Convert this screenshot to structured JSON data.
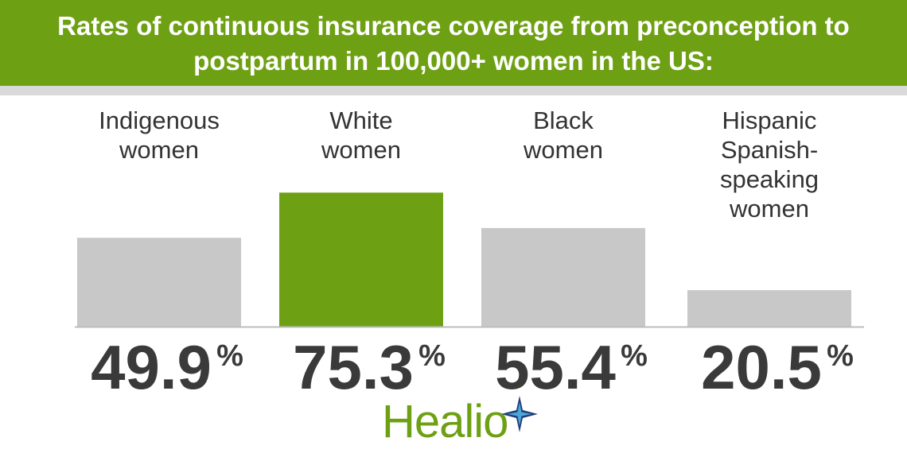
{
  "header": {
    "title_line1": "Rates of continuous insurance coverage from preconception to",
    "title_line2": "postpartum in 100,000+ women in the US:"
  },
  "chart_data": {
    "type": "bar",
    "title": "Rates of continuous insurance coverage from preconception to postpartum in 100,000+ women in the US:",
    "categories": [
      [
        "Indigenous",
        "women"
      ],
      [
        "White",
        "women"
      ],
      [
        "Black",
        "women"
      ],
      [
        "Hispanic",
        "Spanish-",
        "speaking",
        "women"
      ]
    ],
    "values": [
      49.9,
      75.3,
      55.4,
      20.5
    ],
    "value_labels": [
      "49.9",
      "75.3",
      "55.4",
      "20.5"
    ],
    "unit": "%",
    "ylim": [
      0,
      100
    ],
    "grid": false,
    "legend": "none",
    "colors": {
      "default": "#c8c8c8",
      "highlight": "#6ea014",
      "baseline": "#bdbdbd"
    },
    "highlight_index": 1
  },
  "logo": {
    "text": "Healio",
    "icon": "star-burst-icon",
    "colors": {
      "text": "#6ea014",
      "star_dark": "#1f3f78",
      "star_light": "#4ea6d8"
    }
  }
}
